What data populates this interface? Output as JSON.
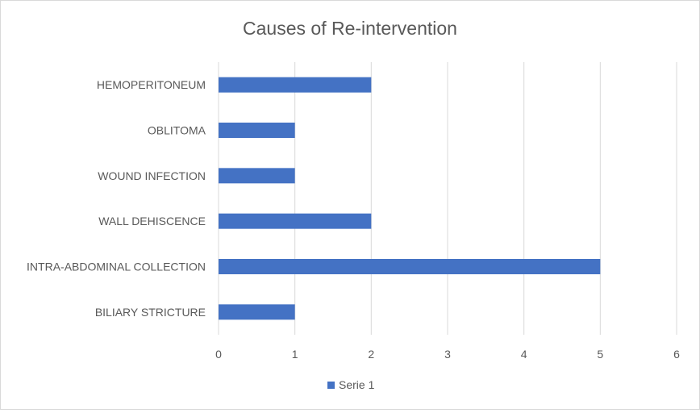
{
  "chart_data": {
    "type": "bar",
    "orientation": "horizontal",
    "title": "Causes of Re-intervention",
    "categories": [
      "BILIARY STRICTURE",
      "INTRA-ABDOMINAL COLLECTION",
      "WALL DEHISCENCE",
      "WOUND INFECTION",
      "OBLITOMA",
      "HEMOPERITONEUM"
    ],
    "series": [
      {
        "name": "Serie 1",
        "values": [
          1,
          5,
          2,
          1,
          1,
          2
        ],
        "color": "#4472c4"
      }
    ],
    "xticks": [
      "0",
      "1",
      "2",
      "3",
      "4",
      "5",
      "6"
    ],
    "xlim": [
      0,
      6
    ],
    "xlabel": "",
    "ylabel": "",
    "grid": "vertical",
    "legend": "bottom"
  }
}
